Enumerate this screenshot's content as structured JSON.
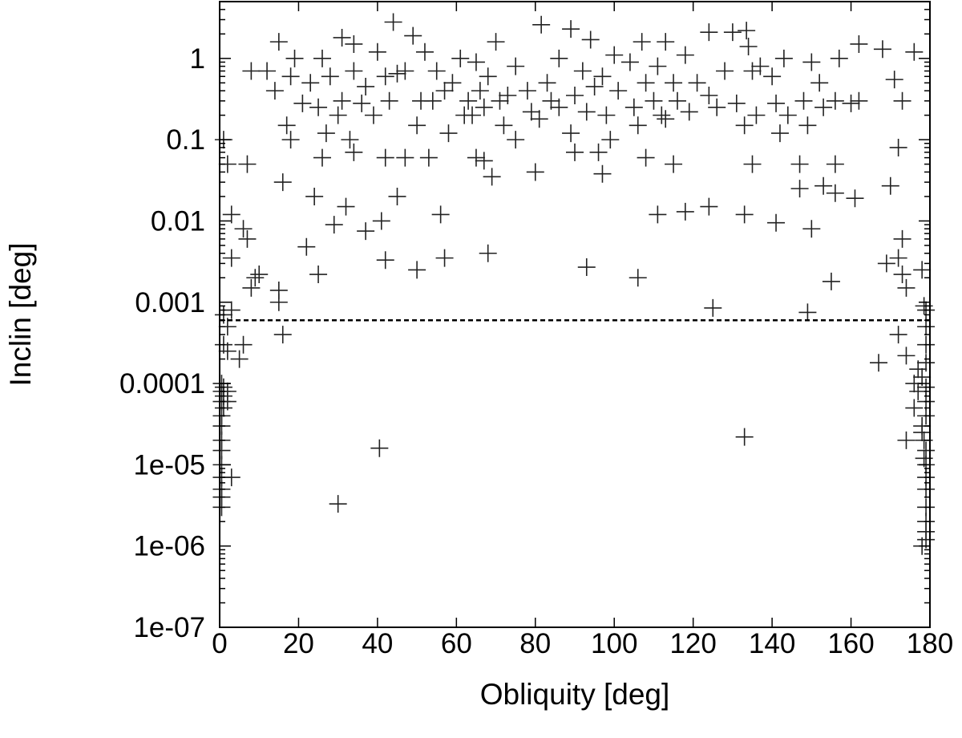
{
  "chart_data": {
    "type": "scatter",
    "title": "",
    "xlabel": "Obliquity [deg]",
    "ylabel": "Inclin [deg]",
    "x_range": [
      0,
      180
    ],
    "y_range": [
      1e-07,
      5
    ],
    "y_scale": "log",
    "grid": false,
    "legend": "none",
    "marker": "plus",
    "marker_color": "#222222",
    "x_ticks": [
      "0",
      "20",
      "40",
      "60",
      "80",
      "100",
      "120",
      "140",
      "160",
      "180"
    ],
    "x_tick_values": [
      0,
      20,
      40,
      60,
      80,
      100,
      120,
      140,
      160,
      180
    ],
    "y_ticks": [
      "1e-07",
      "1e-06",
      "1e-05",
      "0.0001",
      "0.001",
      "0.01",
      "0.1",
      "1"
    ],
    "y_tick_values": [
      1e-07,
      1e-06,
      1e-05,
      0.0001,
      0.001,
      0.01,
      0.1,
      1
    ],
    "reference_line": {
      "y": 0.0006,
      "style": "dashed",
      "color": "#000000"
    },
    "points": [
      [
        44,
        2.8
      ],
      [
        81.5,
        2.6
      ],
      [
        89,
        2.3
      ],
      [
        124,
        2.1
      ],
      [
        130,
        2.1
      ],
      [
        133.5,
        2.2
      ],
      [
        49,
        1.9
      ],
      [
        31,
        1.8
      ],
      [
        15,
        1.6
      ],
      [
        34,
        1.5
      ],
      [
        70,
        1.6
      ],
      [
        94,
        1.7
      ],
      [
        107,
        1.6
      ],
      [
        113,
        1.6
      ],
      [
        134,
        1.4
      ],
      [
        162,
        1.5
      ],
      [
        168,
        1.3
      ],
      [
        176,
        1.2
      ],
      [
        100,
        1.1
      ],
      [
        86,
        1.0
      ],
      [
        61,
        1.0
      ],
      [
        52,
        1.2
      ],
      [
        26,
        1.0
      ],
      [
        40,
        1.2
      ],
      [
        19,
        1.0
      ],
      [
        118,
        1.1
      ],
      [
        143,
        1.0
      ],
      [
        137,
        0.8
      ],
      [
        157,
        1.0
      ],
      [
        150,
        0.9
      ],
      [
        65,
        0.9
      ],
      [
        75,
        0.8
      ],
      [
        92,
        0.7
      ],
      [
        104,
        0.9
      ],
      [
        111,
        0.8
      ],
      [
        128,
        0.7
      ],
      [
        135,
        0.7
      ],
      [
        8,
        0.7
      ],
      [
        28,
        0.6
      ],
      [
        34,
        0.7
      ],
      [
        42,
        0.6
      ],
      [
        47,
        0.7
      ],
      [
        55,
        0.7
      ],
      [
        59,
        0.5
      ],
      [
        68,
        0.6
      ],
      [
        83,
        0.5
      ],
      [
        97,
        0.6
      ],
      [
        108,
        0.5
      ],
      [
        115,
        0.5
      ],
      [
        121,
        0.5
      ],
      [
        140,
        0.6
      ],
      [
        152,
        0.5
      ],
      [
        171,
        0.55
      ],
      [
        18,
        0.6
      ],
      [
        23,
        0.5
      ],
      [
        12,
        0.7
      ],
      [
        31,
        0.3
      ],
      [
        37,
        0.45
      ],
      [
        45,
        0.65
      ],
      [
        51,
        0.3
      ],
      [
        57,
        0.4
      ],
      [
        63,
        0.3
      ],
      [
        66,
        0.4
      ],
      [
        73,
        0.35
      ],
      [
        78,
        0.4
      ],
      [
        84,
        0.3
      ],
      [
        90,
        0.35
      ],
      [
        95,
        0.45
      ],
      [
        101,
        0.4
      ],
      [
        110,
        0.3
      ],
      [
        116,
        0.3
      ],
      [
        124,
        0.35
      ],
      [
        131,
        0.28
      ],
      [
        141,
        0.28
      ],
      [
        148,
        0.3
      ],
      [
        156,
        0.3
      ],
      [
        162,
        0.3
      ],
      [
        173,
        0.3
      ],
      [
        14,
        0.4
      ],
      [
        21,
        0.28
      ],
      [
        25,
        0.25
      ],
      [
        30,
        0.2
      ],
      [
        36,
        0.28
      ],
      [
        43,
        0.3
      ],
      [
        54,
        0.3
      ],
      [
        62,
        0.2
      ],
      [
        67,
        0.25
      ],
      [
        71,
        0.3
      ],
      [
        79,
        0.22
      ],
      [
        86,
        0.25
      ],
      [
        93,
        0.22
      ],
      [
        98,
        0.2
      ],
      [
        105,
        0.25
      ],
      [
        112,
        0.2
      ],
      [
        119,
        0.22
      ],
      [
        126,
        0.25
      ],
      [
        136,
        0.2
      ],
      [
        144,
        0.2
      ],
      [
        153,
        0.25
      ],
      [
        160,
        0.28
      ],
      [
        17,
        0.15
      ],
      [
        27,
        0.12
      ],
      [
        33,
        0.1
      ],
      [
        39,
        0.2
      ],
      [
        50,
        0.15
      ],
      [
        58,
        0.12
      ],
      [
        64,
        0.2
      ],
      [
        72,
        0.15
      ],
      [
        81,
        0.18
      ],
      [
        89,
        0.12
      ],
      [
        99,
        0.1
      ],
      [
        106,
        0.15
      ],
      [
        113,
        0.18
      ],
      [
        133,
        0.15
      ],
      [
        142,
        0.12
      ],
      [
        149,
        0.15
      ],
      [
        1,
        0.1
      ],
      [
        2,
        0.05
      ],
      [
        7,
        0.05
      ],
      [
        18,
        0.1
      ],
      [
        26,
        0.06
      ],
      [
        34,
        0.07
      ],
      [
        42,
        0.06
      ],
      [
        47,
        0.06
      ],
      [
        53,
        0.06
      ],
      [
        65,
        0.06
      ],
      [
        75,
        0.1
      ],
      [
        80,
        0.04
      ],
      [
        90,
        0.07
      ],
      [
        96,
        0.07
      ],
      [
        108,
        0.06
      ],
      [
        115,
        0.05
      ],
      [
        135,
        0.05
      ],
      [
        147,
        0.05
      ],
      [
        156,
        0.05
      ],
      [
        172,
        0.08
      ],
      [
        67,
        0.055
      ],
      [
        69,
        0.035
      ],
      [
        97,
        0.038
      ],
      [
        3,
        0.012
      ],
      [
        6,
        0.008
      ],
      [
        7,
        0.006
      ],
      [
        16,
        0.03
      ],
      [
        24,
        0.02
      ],
      [
        29,
        0.009
      ],
      [
        32,
        0.015
      ],
      [
        37,
        0.0075
      ],
      [
        41,
        0.01
      ],
      [
        45,
        0.02
      ],
      [
        56,
        0.012
      ],
      [
        111,
        0.012
      ],
      [
        118,
        0.013
      ],
      [
        124,
        0.015
      ],
      [
        133,
        0.012
      ],
      [
        141,
        0.0095
      ],
      [
        147,
        0.025
      ],
      [
        150,
        0.008
      ],
      [
        153,
        0.027
      ],
      [
        156,
        0.022
      ],
      [
        161,
        0.019
      ],
      [
        170,
        0.027
      ],
      [
        173,
        0.006
      ],
      [
        3,
        0.0035
      ],
      [
        9,
        0.002
      ],
      [
        10,
        0.0022
      ],
      [
        8,
        0.0015
      ],
      [
        15,
        0.0014
      ],
      [
        15,
        0.001
      ],
      [
        22,
        0.0048
      ],
      [
        25,
        0.0022
      ],
      [
        42,
        0.0033
      ],
      [
        50,
        0.0025
      ],
      [
        57,
        0.0035
      ],
      [
        68,
        0.004
      ],
      [
        93,
        0.0027
      ],
      [
        106,
        0.002
      ],
      [
        155,
        0.0018
      ],
      [
        169,
        0.003
      ],
      [
        172,
        0.0035
      ],
      [
        173,
        0.0022
      ],
      [
        174,
        0.0015
      ],
      [
        178,
        0.0025
      ],
      [
        125,
        0.00085
      ],
      [
        149,
        0.00075
      ],
      [
        178.5,
        0.0009
      ],
      [
        179,
        0.0008
      ],
      [
        179,
        0.0005
      ],
      [
        1,
        0.0007
      ],
      [
        2,
        0.0005
      ],
      [
        3,
        0.0008
      ],
      [
        1,
        0.0003
      ],
      [
        2,
        0.00025
      ],
      [
        5,
        0.0002
      ],
      [
        6,
        0.0003
      ],
      [
        16,
        0.0004
      ],
      [
        167,
        0.00018
      ],
      [
        172,
        0.0004
      ],
      [
        174,
        0.00022
      ],
      [
        176,
        0.0001
      ],
      [
        177,
        0.00015
      ],
      [
        178,
        0.00012
      ],
      [
        179,
        0.00018
      ],
      [
        179,
        0.0003
      ],
      [
        0.5,
        0.0001
      ],
      [
        0.5,
        8e-05
      ],
      [
        0.5,
        6e-05
      ],
      [
        0.5,
        4e-05
      ],
      [
        0.5,
        3e-05
      ],
      [
        0.5,
        2e-05
      ],
      [
        1,
        9e-05
      ],
      [
        1,
        7e-05
      ],
      [
        1,
        5e-05
      ],
      [
        2,
        8e-05
      ],
      [
        2,
        6e-05
      ],
      [
        0.5,
        1.5e-05
      ],
      [
        0.5,
        1e-05
      ],
      [
        0.5,
        7e-06
      ],
      [
        0.5,
        5e-06
      ],
      [
        0.5,
        4e-06
      ],
      [
        0.5,
        3e-06
      ],
      [
        3,
        7e-06
      ],
      [
        174,
        2e-05
      ],
      [
        176,
        5e-05
      ],
      [
        177,
        8e-05
      ],
      [
        178,
        3e-05
      ],
      [
        178,
        2.5e-05
      ],
      [
        179,
        1.5e-05
      ],
      [
        179,
        1e-05
      ],
      [
        179,
        7e-06
      ],
      [
        179,
        5e-06
      ],
      [
        179,
        3e-06
      ],
      [
        179,
        2e-06
      ],
      [
        179,
        1.5e-06
      ],
      [
        179,
        1.2e-06
      ],
      [
        178,
        1e-06
      ],
      [
        179,
        4e-05
      ],
      [
        179,
        6e-05
      ],
      [
        179,
        9e-05
      ],
      [
        178.5,
        2e-05
      ],
      [
        178.5,
        1.2e-05
      ],
      [
        40.5,
        1.6e-05
      ],
      [
        30,
        3.3e-06
      ],
      [
        133,
        2.2e-05
      ]
    ]
  }
}
